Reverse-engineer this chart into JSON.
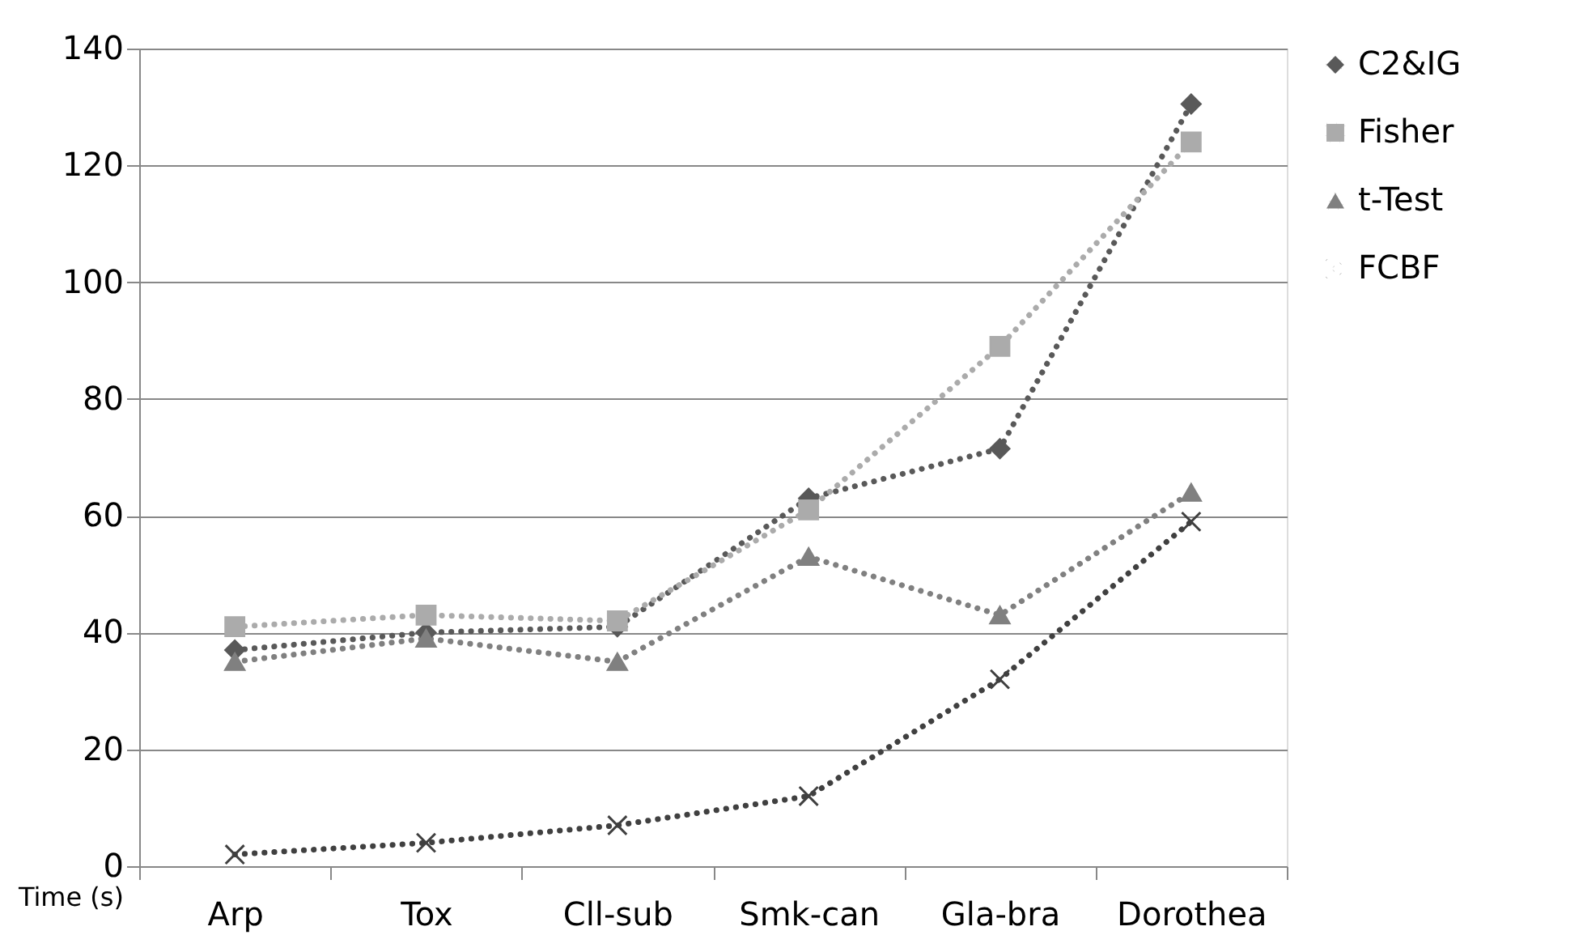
{
  "chart_data": {
    "type": "line",
    "ylabel": "Time (s)",
    "categories": [
      "Arp",
      "Tox",
      "Cll-sub",
      "Smk-can",
      "Gla-bra",
      "Dorothea"
    ],
    "series": [
      {
        "name": "C2&IG",
        "color": "#595959",
        "marker": "diamond",
        "values": [
          37,
          40,
          41,
          63,
          71.5,
          130.5
        ]
      },
      {
        "name": "Fisher",
        "color": "#ababab",
        "marker": "square",
        "values": [
          41,
          43,
          42,
          61,
          89,
          124
        ]
      },
      {
        "name": "t-Test",
        "color": "#808080",
        "marker": "triangle",
        "values": [
          35,
          39,
          35,
          53,
          43,
          64
        ]
      },
      {
        "name": "FCBF",
        "color": "#404040",
        "marker": "cross",
        "values": [
          2,
          4,
          7,
          12,
          32,
          59
        ]
      }
    ],
    "ylim": [
      0,
      140
    ],
    "yticks": [
      0,
      20,
      40,
      60,
      80,
      100,
      120,
      140
    ],
    "grid": "y",
    "legend": "right",
    "line_style": "dotted"
  }
}
